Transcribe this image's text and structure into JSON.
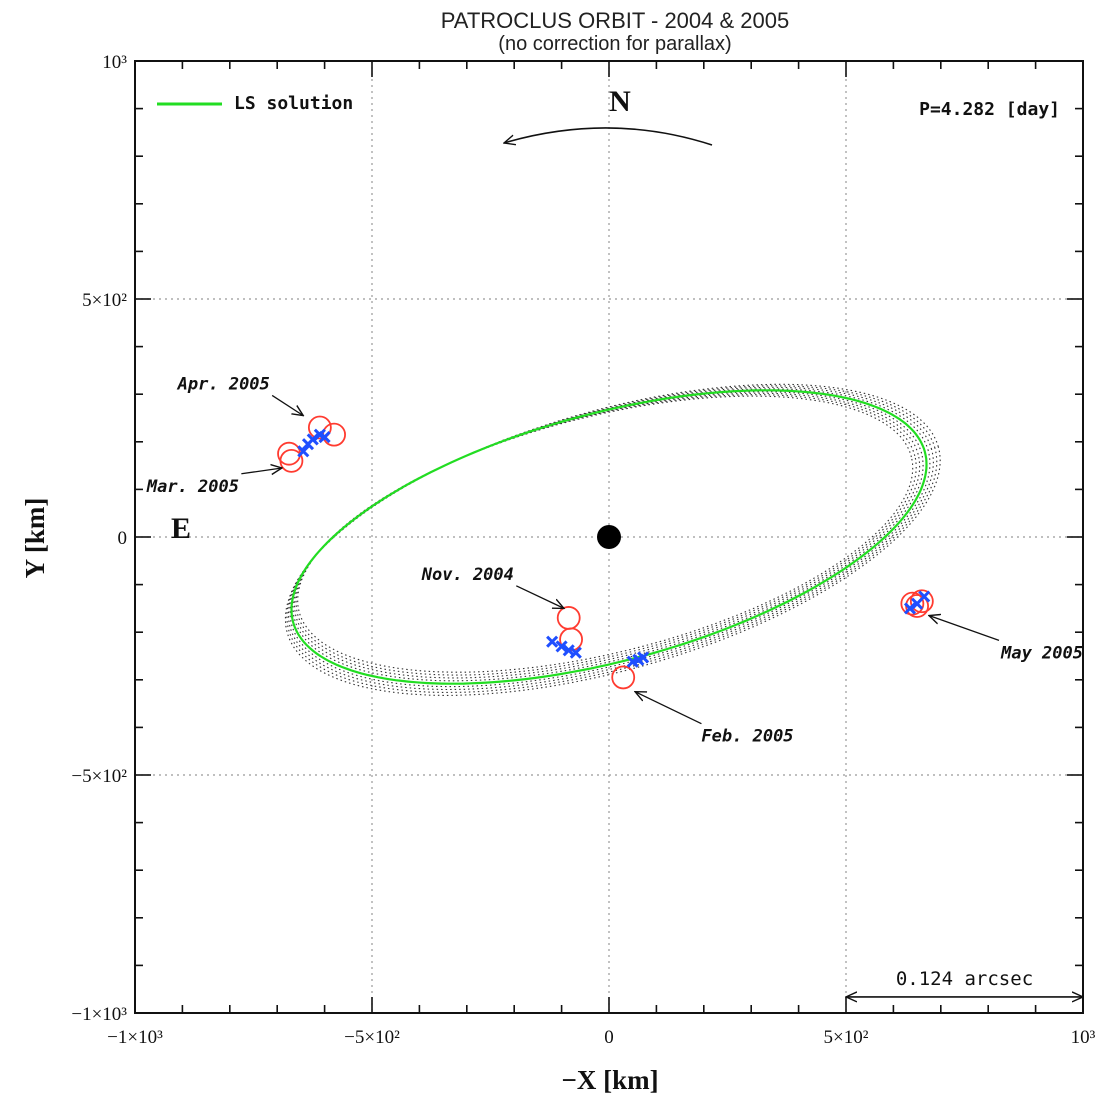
{
  "chart_data": {
    "type": "scatter",
    "title": "PATROCLUS ORBIT - 2004 & 2005",
    "subtitle": "(no correction for parallax)",
    "xlabel": "−X [km]",
    "ylabel": "Y [km]",
    "xlim": [
      -1000,
      1000
    ],
    "ylim": [
      -1000,
      1000
    ],
    "grid": true,
    "xticks": [
      {
        "value": -1000,
        "label": "−1×10³"
      },
      {
        "value": -500,
        "label": "−5×10²"
      },
      {
        "value": 0,
        "label": "0"
      },
      {
        "value": 500,
        "label": "5×10²"
      },
      {
        "value": 1000,
        "label": "10³"
      }
    ],
    "yticks": [
      {
        "value": 1000,
        "label": "10³"
      },
      {
        "value": 500,
        "label": "5×10²"
      },
      {
        "value": 0,
        "label": "0"
      },
      {
        "value": -500,
        "label": "−5×10²"
      },
      {
        "value": -1000,
        "label": "−1×10³"
      }
    ],
    "legend": {
      "placement": "top-left",
      "label": "LS solution",
      "color": "#22dd22"
    },
    "period_label": "P=4.282 [day]",
    "orbit": {
      "center": [
        0,
        0
      ],
      "semi_major": 690,
      "semi_minor": 260,
      "rotation_deg": 15,
      "color": "#22dd22"
    },
    "primary": {
      "x": 0,
      "y": 0,
      "color": "#000000"
    },
    "compass": {
      "north_label": "N",
      "east_label": "E"
    },
    "scale_bar": {
      "label": "0.124 arcsec",
      "x_from": 500,
      "x_to": 1000,
      "y": -920
    },
    "series": [
      {
        "name": "observed",
        "marker": "circle",
        "color": "#ff3b30",
        "points": [
          {
            "x": -675,
            "y": 175
          },
          {
            "x": -670,
            "y": 160
          },
          {
            "x": -610,
            "y": 230
          },
          {
            "x": -580,
            "y": 215
          },
          {
            "x": -85,
            "y": -170
          },
          {
            "x": -80,
            "y": -215
          },
          {
            "x": 30,
            "y": -295
          },
          {
            "x": 640,
            "y": -140
          },
          {
            "x": 650,
            "y": -145
          },
          {
            "x": 660,
            "y": -135
          }
        ]
      },
      {
        "name": "predicted",
        "marker": "x",
        "color": "#1f4fff",
        "points": [
          {
            "x": -645,
            "y": 180
          },
          {
            "x": -635,
            "y": 195
          },
          {
            "x": -625,
            "y": 205
          },
          {
            "x": -610,
            "y": 215
          },
          {
            "x": -600,
            "y": 210
          },
          {
            "x": -120,
            "y": -220
          },
          {
            "x": -100,
            "y": -230
          },
          {
            "x": -85,
            "y": -238
          },
          {
            "x": -70,
            "y": -243
          },
          {
            "x": 50,
            "y": -262
          },
          {
            "x": 62,
            "y": -258
          },
          {
            "x": 72,
            "y": -253
          },
          {
            "x": 635,
            "y": -150
          },
          {
            "x": 650,
            "y": -140
          },
          {
            "x": 665,
            "y": -125
          }
        ]
      }
    ],
    "annotations": [
      {
        "text": "Apr. 2005",
        "tx": -910,
        "ty": 310,
        "ax": -645,
        "ay": 255,
        "anchor": "start"
      },
      {
        "text": "Mar. 2005",
        "tx": -975,
        "ty": 95,
        "ax": -690,
        "ay": 145,
        "anchor": "start"
      },
      {
        "text": "Nov. 2004",
        "tx": -395,
        "ty": -90,
        "ax": -95,
        "ay": -150,
        "anchor": "start"
      },
      {
        "text": "Feb. 2005",
        "tx": 195,
        "ty": -430,
        "ax": 55,
        "ay": -325,
        "anchor": "start"
      },
      {
        "text": "May 2005",
        "tx": 1000,
        "ty": -255,
        "ax": 675,
        "ay": -165,
        "anchor": "end"
      }
    ]
  }
}
